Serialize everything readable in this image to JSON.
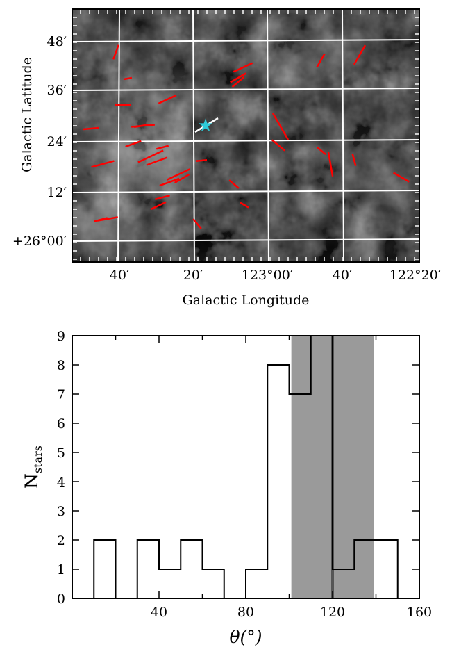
{
  "chart_data": [
    {
      "type": "scatter",
      "panel": "polarization-map",
      "title": "",
      "xlabel": "Galactic Longitude",
      "ylabel": "Galactic Latitude",
      "x_tick_labels": [
        "40′",
        "20′",
        "123°00′",
        "40′",
        "122°20′"
      ],
      "y_tick_labels": [
        "48′",
        "36′",
        "24′",
        "12′",
        "+26°00′"
      ],
      "grid": true,
      "background": "grayscale dust emission",
      "vector_color": "#ff0000",
      "source_marker": {
        "symbol": "★",
        "color": "#2ecad8",
        "vector_color": "#ffffff"
      },
      "vectors_theta_deg": [
        8,
        12,
        22,
        32,
        35,
        38,
        44,
        47,
        52,
        55,
        60,
        78,
        85,
        92,
        93,
        94,
        95,
        96,
        97,
        98,
        99,
        100,
        102,
        103,
        104,
        105,
        106,
        107,
        108,
        109,
        110,
        111,
        112,
        113,
        118,
        121,
        122,
        124,
        126,
        129,
        134,
        143,
        147,
        150
      ]
    },
    {
      "type": "bar",
      "panel": "angle-histogram",
      "title": "",
      "xlabel": "θ(°)",
      "ylabel": "N",
      "ylabel_sub": "stars",
      "histtype": "step",
      "bin_edges": [
        10,
        20,
        30,
        40,
        50,
        60,
        70,
        80,
        90,
        100,
        110,
        120,
        130,
        140,
        150
      ],
      "values": [
        2,
        0,
        2,
        1,
        2,
        1,
        0,
        1,
        8,
        7,
        9,
        1,
        2,
        2
      ],
      "xlim": [
        0,
        160
      ],
      "ylim": [
        0,
        9
      ],
      "x_ticks": [
        40,
        80,
        120,
        160
      ],
      "y_ticks": [
        0,
        1,
        2,
        3,
        4,
        5,
        6,
        7,
        8,
        9
      ],
      "mean_line": 120,
      "shaded_range": [
        101,
        139
      ]
    }
  ]
}
